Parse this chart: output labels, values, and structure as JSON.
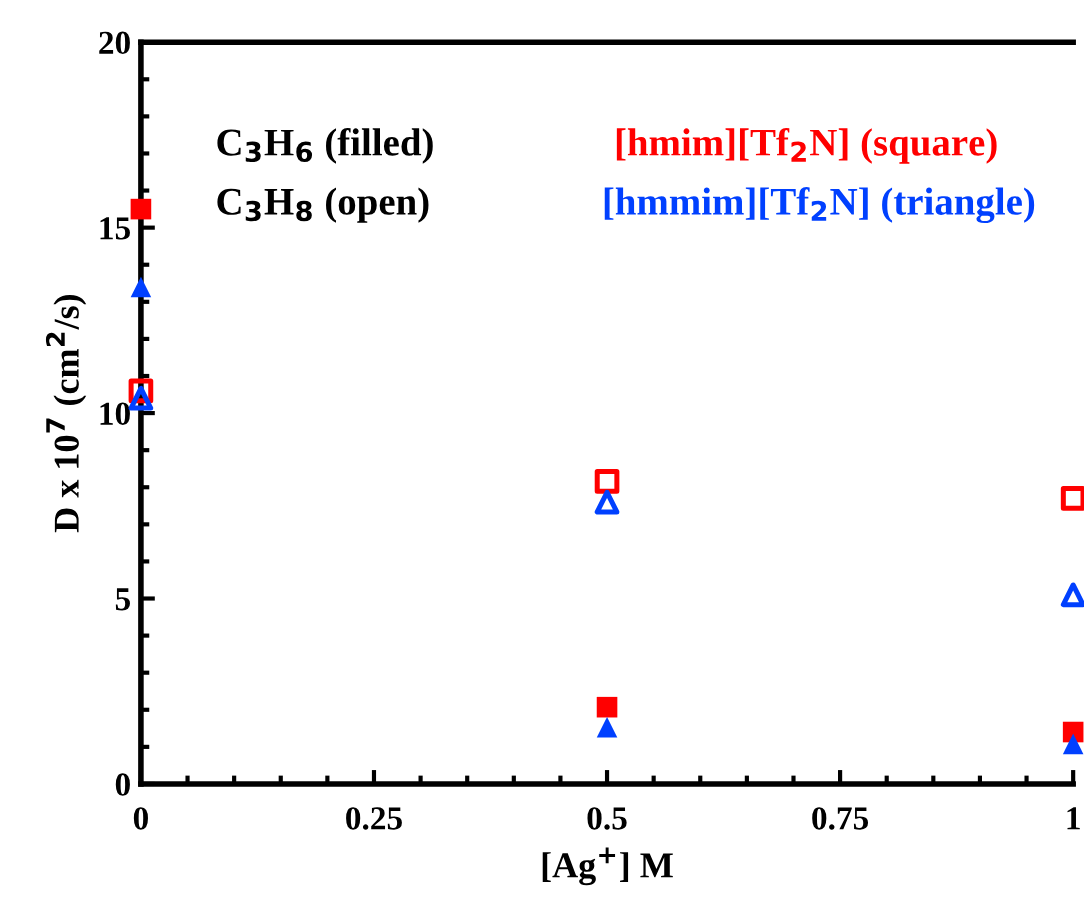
{
  "chart_data": {
    "type": "scatter",
    "xlabel": "[Ag$^{+}$] M",
    "ylabel": "D x 10$^{7}$ (cm$^{2}$/s)",
    "x": [
      0,
      0.5,
      1
    ],
    "xlim": [
      0,
      1
    ],
    "xticks": [
      0,
      0.25,
      0.5,
      0.75,
      1
    ],
    "ylim": [
      0,
      20
    ],
    "yticks": [
      0,
      5,
      10,
      15,
      20
    ],
    "grid": false,
    "legend": false,
    "series": [
      {
        "color": "#ff0000",
        "marker": "square",
        "values": [
          15.5,
          2.07,
          1.4
        ]
      },
      {
        "color": "#0040ff",
        "marker": "triangle",
        "values": [
          13.4,
          1.53,
          1.08
        ]
      },
      {
        "color": "#ff0000",
        "marker": "square",
        "values": [
          10.6,
          8.16,
          7.7
        ]
      },
      {
        "color": "#0040ff",
        "marker": "triangle",
        "values": [
          10.4,
          7.6,
          5.1
        ]
      }
    ],
    "annotations": [
      "C$_{3}$H$_{6}$ (filled)",
      "C$_{3}$H$_{8}$ (open)",
      "[hmim][Tf$_{2}$N] (square)",
      "[hmmim][Tf$_{2}$N] (triangle)"
    ]
  }
}
